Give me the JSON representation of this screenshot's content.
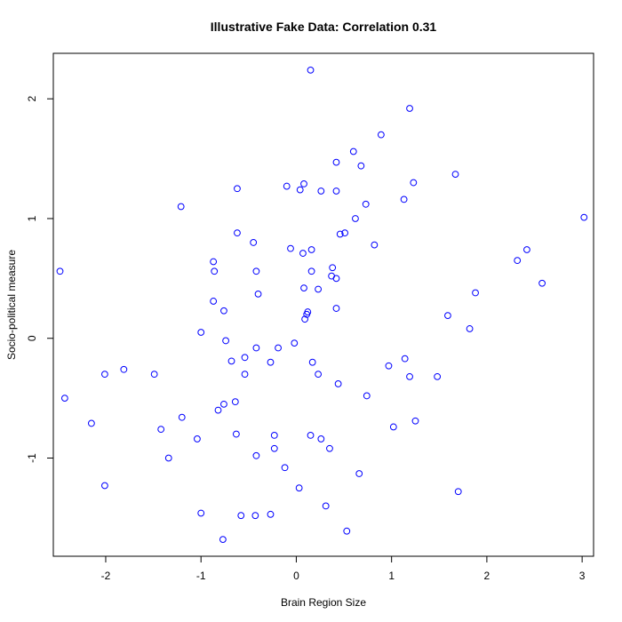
{
  "chart_data": {
    "type": "scatter",
    "title": "Illustrative Fake Data: Correlation 0.31",
    "xlabel": "Brain Region Size",
    "ylabel": "Socio-political measure",
    "xlim": [
      -2.55,
      3.12
    ],
    "ylim": [
      -1.82,
      2.38
    ],
    "xticks": [
      -2,
      -1,
      0,
      1,
      2,
      3
    ],
    "yticks": [
      -1,
      0,
      1,
      2
    ],
    "grid": false,
    "point_color": "#0000ff",
    "points": [
      [
        0.15,
        2.24
      ],
      [
        1.19,
        1.92
      ],
      [
        0.89,
        1.7
      ],
      [
        0.6,
        1.56
      ],
      [
        0.42,
        1.47
      ],
      [
        0.68,
        1.44
      ],
      [
        1.67,
        1.37
      ],
      [
        1.23,
        1.3
      ],
      [
        0.08,
        1.29
      ],
      [
        -0.1,
        1.27
      ],
      [
        -0.62,
        1.25
      ],
      [
        0.04,
        1.24
      ],
      [
        0.26,
        1.23
      ],
      [
        0.42,
        1.23
      ],
      [
        1.13,
        1.16
      ],
      [
        0.73,
        1.12
      ],
      [
        -1.21,
        1.1
      ],
      [
        3.02,
        1.01
      ],
      [
        0.62,
        1.0
      ],
      [
        0.51,
        0.88
      ],
      [
        0.46,
        0.87
      ],
      [
        -0.62,
        0.88
      ],
      [
        -0.45,
        0.8
      ],
      [
        0.82,
        0.78
      ],
      [
        -0.06,
        0.75
      ],
      [
        2.42,
        0.74
      ],
      [
        0.16,
        0.74
      ],
      [
        0.07,
        0.71
      ],
      [
        2.32,
        0.65
      ],
      [
        -0.87,
        0.64
      ],
      [
        0.38,
        0.59
      ],
      [
        -2.48,
        0.56
      ],
      [
        -0.86,
        0.56
      ],
      [
        -0.42,
        0.56
      ],
      [
        0.16,
        0.56
      ],
      [
        0.37,
        0.52
      ],
      [
        0.42,
        0.5
      ],
      [
        2.58,
        0.46
      ],
      [
        0.08,
        0.42
      ],
      [
        0.23,
        0.41
      ],
      [
        1.88,
        0.38
      ],
      [
        -0.4,
        0.37
      ],
      [
        -0.87,
        0.31
      ],
      [
        0.42,
        0.25
      ],
      [
        -0.76,
        0.23
      ],
      [
        0.12,
        0.22
      ],
      [
        0.11,
        0.2
      ],
      [
        1.59,
        0.19
      ],
      [
        0.09,
        0.16
      ],
      [
        1.82,
        0.08
      ],
      [
        -1.0,
        0.05
      ],
      [
        -0.74,
        -0.02
      ],
      [
        -0.02,
        -0.04
      ],
      [
        -0.42,
        -0.08
      ],
      [
        -0.19,
        -0.08
      ],
      [
        -0.54,
        -0.16
      ],
      [
        1.14,
        -0.17
      ],
      [
        -0.68,
        -0.19
      ],
      [
        -0.27,
        -0.2
      ],
      [
        0.17,
        -0.2
      ],
      [
        0.97,
        -0.23
      ],
      [
        -1.81,
        -0.26
      ],
      [
        -2.01,
        -0.3
      ],
      [
        -1.49,
        -0.3
      ],
      [
        -0.54,
        -0.3
      ],
      [
        0.23,
        -0.3
      ],
      [
        1.19,
        -0.32
      ],
      [
        1.48,
        -0.32
      ],
      [
        0.44,
        -0.38
      ],
      [
        0.74,
        -0.48
      ],
      [
        -2.43,
        -0.5
      ],
      [
        -0.64,
        -0.53
      ],
      [
        -0.76,
        -0.55
      ],
      [
        -0.82,
        -0.6
      ],
      [
        -1.2,
        -0.66
      ],
      [
        1.25,
        -0.69
      ],
      [
        -2.15,
        -0.71
      ],
      [
        1.02,
        -0.74
      ],
      [
        -1.42,
        -0.76
      ],
      [
        -0.63,
        -0.8
      ],
      [
        -0.23,
        -0.81
      ],
      [
        0.15,
        -0.81
      ],
      [
        -1.04,
        -0.84
      ],
      [
        0.26,
        -0.84
      ],
      [
        -0.23,
        -0.92
      ],
      [
        0.35,
        -0.92
      ],
      [
        -0.42,
        -0.98
      ],
      [
        -1.34,
        -1.0
      ],
      [
        -0.12,
        -1.08
      ],
      [
        0.66,
        -1.13
      ],
      [
        -2.01,
        -1.23
      ],
      [
        0.03,
        -1.25
      ],
      [
        1.7,
        -1.28
      ],
      [
        0.31,
        -1.4
      ],
      [
        -1.0,
        -1.46
      ],
      [
        -0.58,
        -1.48
      ],
      [
        -0.43,
        -1.48
      ],
      [
        -0.27,
        -1.47
      ],
      [
        0.53,
        -1.61
      ],
      [
        -0.77,
        -1.68
      ]
    ]
  }
}
